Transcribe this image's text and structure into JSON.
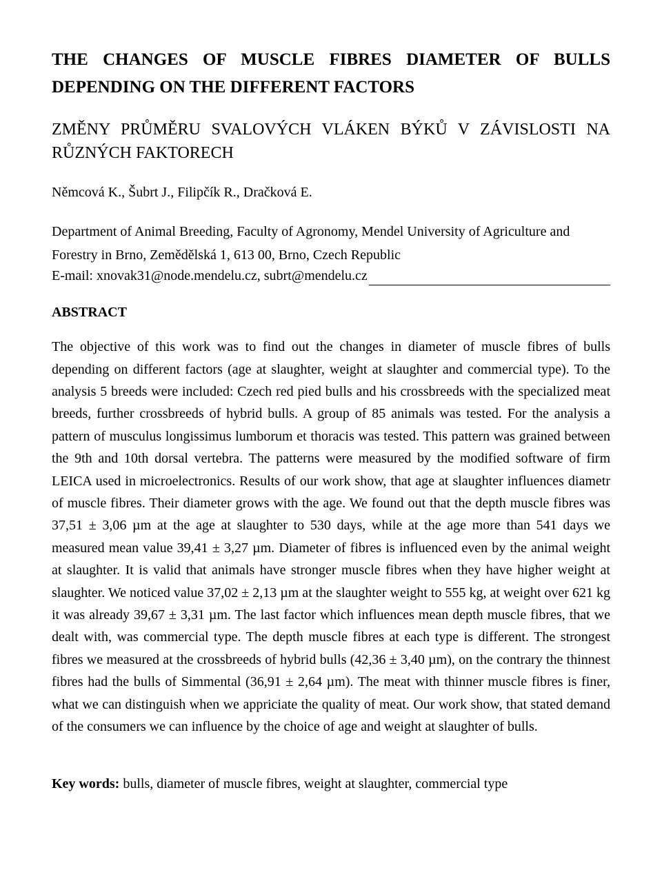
{
  "title_line1": "THE CHANGES OF MUSCLE FIBRES DIAMETER OF BULLS",
  "title_line2": "DEPENDING ON THE DIFFERENT FACTORS",
  "subtitle_line1": "ZMĚNY PRŮMĚRU SVALOVÝCH VLÁKEN BÝKŮ V ZÁVISLOSTI NA",
  "subtitle_line2": "RŮZNÝCH FAKTORECH",
  "authors": "Němcová K., Šubrt J., Filipčík R., Dračková E.",
  "affiliation": "Department of Animal Breeding, Faculty of Agronomy, Mendel University of Agriculture and Forestry in Brno, Zemědělská 1, 613 00, Brno, Czech Republic",
  "email": "E-mail: xnovak31@node.mendelu.cz, subrt@mendelu.cz",
  "abstract_heading": "ABSTRACT",
  "abstract_body": "The objective of this work was to find out the changes in diameter of muscle fibres of bulls depending on different factors (age at slaughter, weight at slaughter and commercial type). To the analysis 5 breeds were included: Czech red pied bulls and his crossbreeds with the specialized meat breeds, further crossbreeds of hybrid bulls. A group of 85 animals was tested. For the analysis a pattern of musculus longissimus lumborum et thoracis was tested. This pattern was grained between the 9th and 10th dorsal vertebra. The patterns were measured by the modified software of firm LEICA used in microelectronics. Results of our work show, that age at slaughter influences diametr of muscle fibres. Their diameter grows with the age. We found out that the depth muscle fibres was 37,51 ± 3,06 µm at the age at slaughter to 530 days, while at the age more than 541 days we measured mean value 39,41 ± 3,27 µm. Diameter of fibres is influenced even by the animal weight at slaughter. It is valid that animals have stronger muscle fibres when they have higher weight at slaughter. We noticed value 37,02 ± 2,13 µm at the slaughter weight to 555 kg, at weight over 621 kg it was already 39,67 ± 3,31 µm. The last factor which influences mean depth muscle fibres, that we dealt with, was commercial type. The depth muscle fibres at each type is different. The strongest fibres we measured at the crossbreeds of hybrid bulls (42,36 ± 3,40 µm), on the contrary the thinnest fibres had the bulls of Simmental (36,91 ± 2,64 µm). The meat with thinner muscle fibres is finer, what we can distinguish when we appriciate the quality of meat. Our work show, that stated demand of the consumers we can influence by the choice of age and weight at slaughter of bulls.",
  "keywords_label": "Key words:",
  "keywords_value": " bulls, diameter of muscle fibres, weight at slaughter, commercial type"
}
